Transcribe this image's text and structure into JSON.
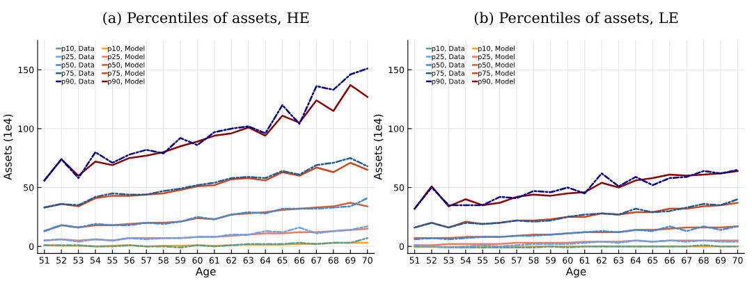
{
  "chart_data": [
    {
      "type": "line",
      "title": "(a) Percentiles of assets, HE",
      "xlabel": "Age",
      "ylabel": "Assets (1e4)",
      "x": [
        51,
        52,
        53,
        54,
        55,
        56,
        57,
        58,
        59,
        60,
        61,
        62,
        63,
        64,
        65,
        66,
        67,
        68,
        69,
        70
      ],
      "xlim": [
        50.6,
        70.4
      ],
      "xticks": [
        51,
        52,
        53,
        54,
        55,
        56,
        57,
        58,
        59,
        60,
        61,
        62,
        63,
        64,
        65,
        66,
        67,
        68,
        69,
        70
      ],
      "ylim": [
        -6,
        175
      ],
      "yticks": [
        0,
        50,
        100,
        150
      ],
      "grid": true,
      "legend": "top left",
      "series": [
        {
          "name": "p10, Data",
          "color": "#5a9a9a",
          "line_style": "dashdot",
          "values": [
            1,
            1,
            1,
            0,
            0,
            1,
            0,
            0,
            -1,
            1,
            0,
            1,
            2,
            2,
            2,
            3,
            2,
            3,
            3,
            7
          ]
        },
        {
          "name": "p25, Data",
          "color": "#6aa0f0",
          "line_style": "dashdot",
          "values": [
            5,
            6,
            4,
            6,
            5,
            7,
            6,
            7,
            7,
            8,
            8,
            10,
            10,
            13,
            12,
            16,
            11,
            13,
            14,
            17
          ]
        },
        {
          "name": "p50, Data",
          "color": "#3d8ad8",
          "line_style": "dashdot",
          "values": [
            13,
            18,
            16,
            19,
            18,
            18,
            20,
            19,
            21,
            25,
            23,
            27,
            29,
            28,
            32,
            32,
            32,
            33,
            34,
            41
          ]
        },
        {
          "name": "p75, Data",
          "color": "#1c5c9c",
          "line_style": "dashdot",
          "values": [
            33,
            36,
            35,
            42,
            45,
            44,
            44,
            47,
            49,
            52,
            54,
            58,
            59,
            58,
            64,
            61,
            69,
            71,
            75,
            68
          ]
        },
        {
          "name": "p90, Data",
          "color": "#00008b",
          "line_style": "dashdot",
          "values": [
            56,
            74,
            58,
            80,
            71,
            78,
            82,
            79,
            92,
            86,
            97,
            100,
            102,
            96,
            120,
            104,
            136,
            133,
            146,
            151
          ]
        },
        {
          "name": "p10, Model",
          "color": "#ffa500",
          "line_style": "solid",
          "values": [
            1,
            0.5,
            0.5,
            0,
            0.5,
            1,
            0,
            0.5,
            0.5,
            1,
            0.5,
            1,
            1.5,
            1.5,
            1.5,
            2,
            2,
            3,
            3,
            3
          ]
        },
        {
          "name": "p25, Model",
          "color": "#f07c5c",
          "line_style": "solid",
          "values": [
            5,
            6,
            5,
            6,
            5,
            7,
            7,
            7,
            7,
            8,
            8,
            9,
            10,
            11,
            11,
            12,
            12,
            13,
            14,
            15
          ]
        },
        {
          "name": "p50, Model",
          "color": "#e0582a",
          "line_style": "solid",
          "values": [
            13,
            18,
            16,
            18,
            18,
            19,
            20,
            20,
            21,
            24,
            23,
            27,
            28,
            29,
            31,
            32,
            33,
            34,
            37,
            34
          ]
        },
        {
          "name": "p75, Model",
          "color": "#d8420e",
          "line_style": "solid",
          "values": [
            33,
            36,
            34,
            41,
            43,
            43,
            44,
            45,
            48,
            51,
            52,
            57,
            58,
            56,
            63,
            60,
            67,
            63,
            71,
            65
          ]
        },
        {
          "name": "p90, Model",
          "color": "#8b0000",
          "line_style": "solid",
          "values": [
            56,
            74,
            60,
            72,
            69,
            75,
            77,
            80,
            85,
            89,
            94,
            96,
            101,
            94,
            111,
            105,
            124,
            115,
            137,
            127
          ]
        }
      ]
    },
    {
      "type": "line",
      "title": "(b) Percentiles of assets, LE",
      "xlabel": "Age",
      "ylabel": "Assets (1e4)",
      "x": [
        51,
        52,
        53,
        54,
        55,
        56,
        57,
        58,
        59,
        60,
        61,
        62,
        63,
        64,
        65,
        66,
        67,
        68,
        69,
        70
      ],
      "xlim": [
        50.6,
        70.4
      ],
      "xticks": [
        51,
        52,
        53,
        54,
        55,
        56,
        57,
        58,
        59,
        60,
        61,
        62,
        63,
        64,
        65,
        66,
        67,
        68,
        69,
        70
      ],
      "ylim": [
        -6,
        175
      ],
      "yticks": [
        0,
        50,
        100,
        150
      ],
      "grid": true,
      "legend": "top left",
      "series": [
        {
          "name": "p10, Data",
          "color": "#5a9a9a",
          "line_style": "dashdot",
          "values": [
            0,
            0,
            -1,
            -1,
            -1,
            -1,
            -1,
            -1,
            0,
            -1,
            0,
            0,
            0,
            0,
            0,
            0,
            0,
            1,
            0,
            0
          ]
        },
        {
          "name": "p25, Data",
          "color": "#6aa0f0",
          "line_style": "dashdot",
          "values": [
            1,
            0,
            -1,
            0,
            1,
            0,
            1,
            2,
            2,
            2,
            3,
            4,
            3,
            5,
            4,
            5,
            4,
            5,
            4,
            4
          ]
        },
        {
          "name": "p50, Data",
          "color": "#3d8ad8",
          "line_style": "dashdot",
          "values": [
            6,
            7,
            6,
            7,
            8,
            8,
            9,
            9,
            10,
            11,
            12,
            13,
            12,
            14,
            13,
            17,
            13,
            17,
            14,
            17
          ]
        },
        {
          "name": "p75, Data",
          "color": "#1c5c9c",
          "line_style": "dashdot",
          "values": [
            16,
            20,
            16,
            20,
            19,
            20,
            22,
            21,
            22,
            25,
            27,
            28,
            27,
            32,
            29,
            30,
            33,
            36,
            35,
            40
          ]
        },
        {
          "name": "p90, Data",
          "color": "#00008b",
          "line_style": "dashdot",
          "values": [
            32,
            50,
            35,
            35,
            35,
            42,
            41,
            47,
            46,
            50,
            45,
            62,
            51,
            59,
            52,
            58,
            59,
            64,
            62,
            65
          ]
        },
        {
          "name": "p10, Model",
          "color": "#ffa500",
          "line_style": "solid",
          "values": [
            -0.5,
            -0.5,
            -0.5,
            -0.5,
            -0.5,
            -0.5,
            -0.5,
            0,
            0,
            0,
            0,
            0,
            0,
            0,
            0,
            0,
            0,
            0,
            0,
            0
          ]
        },
        {
          "name": "p25, Model",
          "color": "#f07c5c",
          "line_style": "solid",
          "values": [
            1,
            1,
            2,
            2,
            2,
            2,
            3,
            3,
            3,
            3,
            4,
            4,
            4,
            5,
            4,
            5,
            5,
            5,
            5,
            5
          ]
        },
        {
          "name": "p50, Model",
          "color": "#e0582a",
          "line_style": "solid",
          "values": [
            7,
            7,
            7,
            8,
            8,
            8,
            9,
            10,
            10,
            11,
            12,
            12,
            12,
            14,
            14,
            15,
            16,
            16,
            16,
            17
          ]
        },
        {
          "name": "p75, Model",
          "color": "#d8420e",
          "line_style": "solid",
          "values": [
            16,
            20,
            16,
            21,
            19,
            20,
            22,
            22,
            23,
            25,
            25,
            28,
            27,
            29,
            29,
            32,
            32,
            34,
            35,
            37
          ]
        },
        {
          "name": "p90, Model",
          "color": "#8b0000",
          "line_style": "solid",
          "values": [
            32,
            51,
            34,
            40,
            35,
            37,
            42,
            44,
            43,
            45,
            46,
            54,
            50,
            56,
            58,
            61,
            60,
            61,
            62,
            64
          ]
        }
      ]
    }
  ]
}
